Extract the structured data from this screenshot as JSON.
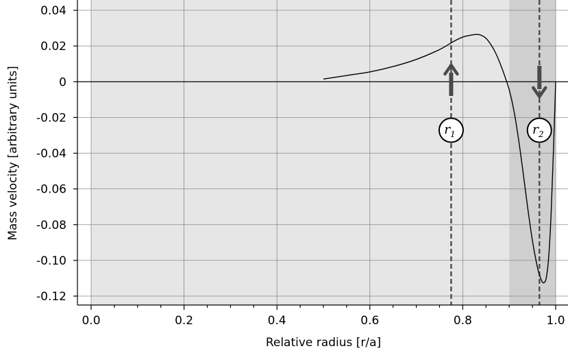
{
  "chart_data": {
    "type": "line",
    "title": "",
    "xlabel": "Relative radius [r/a]",
    "ylabel": "Mass velocity [arbitrary units]",
    "xlim": [
      0.0,
      1.0
    ],
    "ylim": [
      -0.125,
      0.045
    ],
    "x_ticks": [
      0.0,
      0.2,
      0.4,
      0.6,
      0.8,
      1.0
    ],
    "x_tick_labels": [
      "0.0",
      "0.2",
      "0.4",
      "0.6",
      "0.8",
      "1.0"
    ],
    "x_minor_step": 0.05,
    "y_ticks": [
      0.04,
      0.02,
      0,
      -0.02,
      -0.04,
      -0.06,
      -0.08,
      -0.1,
      -0.12
    ],
    "y_tick_labels": [
      "0.04",
      "0.02",
      "0",
      "-0.02",
      "-0.04",
      "-0.06",
      "-0.08",
      "-0.10",
      "-0.12"
    ],
    "grid": true,
    "legend": "none",
    "series": [
      {
        "x": [
          0.5,
          0.55,
          0.6,
          0.65,
          0.7,
          0.75,
          0.78,
          0.8,
          0.82,
          0.83,
          0.84,
          0.85,
          0.86,
          0.87,
          0.88,
          0.89,
          0.9,
          0.91,
          0.92,
          0.93,
          0.94,
          0.95,
          0.96,
          0.965,
          0.97,
          0.975,
          0.98,
          0.985,
          0.99,
          0.995,
          1.0
        ],
        "y": [
          0.0015,
          0.0035,
          0.0055,
          0.0085,
          0.0125,
          0.018,
          0.0225,
          0.025,
          0.0262,
          0.0265,
          0.026,
          0.0243,
          0.021,
          0.0165,
          0.0105,
          0.0035,
          -0.0045,
          -0.016,
          -0.032,
          -0.051,
          -0.071,
          -0.089,
          -0.103,
          -0.108,
          -0.1115,
          -0.1125,
          -0.1095,
          -0.098,
          -0.075,
          -0.04,
          0.0
        ],
        "color": "#000000"
      }
    ],
    "shaded_regions": [
      {
        "from": 0.0,
        "to": 0.9,
        "color": "#e6e6e6"
      },
      {
        "from": 0.9,
        "to": 1.0,
        "color": "#cfcfcf"
      }
    ],
    "markers": [
      {
        "x": 0.775,
        "label_main": "r",
        "label_sub": "1",
        "direction": "up"
      },
      {
        "x": 0.965,
        "label_main": "r",
        "label_sub": "2",
        "direction": "down"
      }
    ],
    "marker_color": "#4a4a4a"
  }
}
